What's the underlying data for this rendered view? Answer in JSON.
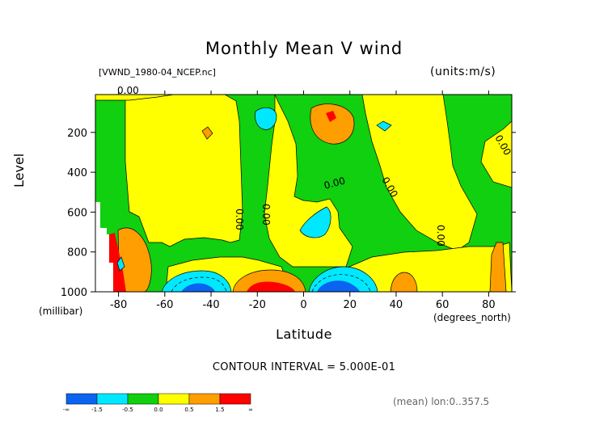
{
  "chart_data": {
    "type": "heatmap",
    "title": "Monthly Mean V wind",
    "file_label": "[VWND_1980-04_NCEP.nc]",
    "units_label": "(units:m/s)",
    "xlabel": "Latitude",
    "xunit": "(degrees_north)",
    "ylabel": "Level",
    "yunit": "(millibar)",
    "xlim": [
      -90,
      90
    ],
    "ylim": [
      1000,
      10
    ],
    "xticks": [
      "-80",
      "-60",
      "-40",
      "-20",
      "0",
      "20",
      "40",
      "60",
      "80"
    ],
    "xtick_values": [
      -80,
      -60,
      -40,
      -20,
      0,
      20,
      40,
      60,
      80
    ],
    "yticks": [
      "200",
      "400",
      "600",
      "800",
      "1000"
    ],
    "ytick_values": [
      200,
      400,
      600,
      800,
      1000
    ],
    "contour_interval": "CONTOUR INTERVAL = 5.000E-01",
    "mean_note": "(mean) lon:0..357.5",
    "contour_labels": [
      "0.00",
      "0.00",
      "0.00",
      "0.00",
      "0.00",
      "0.00",
      "0.00"
    ],
    "colorbar": {
      "colors": [
        "#0a64f0",
        "#00e8ff",
        "#10d010",
        "#ffff00",
        "#ff9e00",
        "#ff0000"
      ],
      "labels": [
        "-∞",
        "-1.5",
        "-0.5",
        "0.0",
        "0.5",
        "1.5",
        "∞"
      ]
    },
    "colors": {
      "green": "#10d010",
      "yellow": "#ffff00",
      "orange": "#ff9e00",
      "red": "#ff0000",
      "cyan": "#00e8ff",
      "blue": "#0a64f0"
    }
  }
}
